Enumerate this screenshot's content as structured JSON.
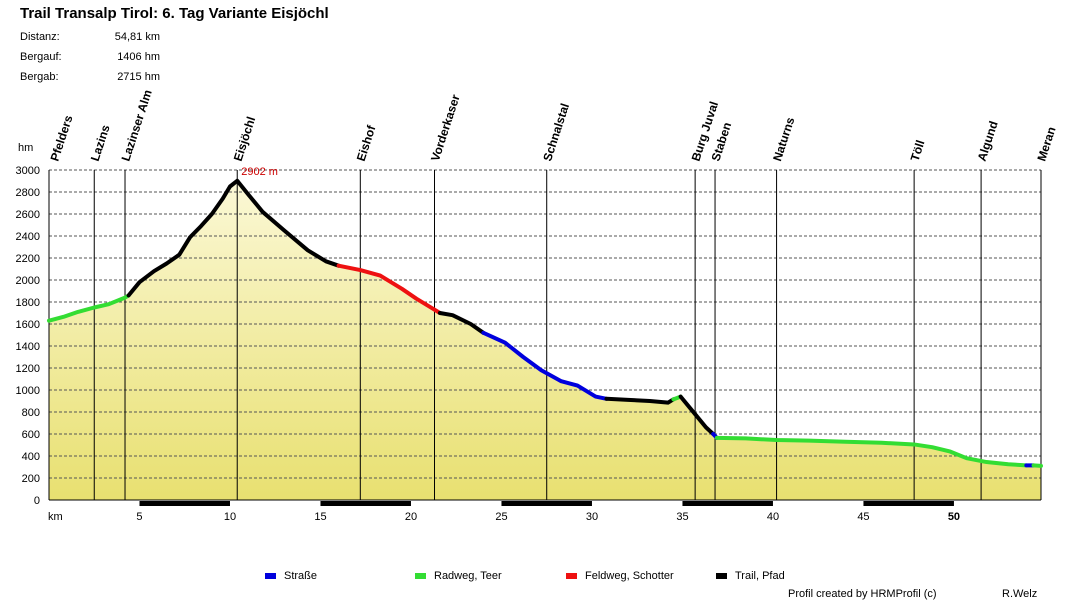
{
  "title": "Trail Transalp Tirol: 6. Tag Variante Eisjöchl",
  "stats": [
    {
      "label": "Distanz:",
      "value": "54,81 km"
    },
    {
      "label": "Bergauf:",
      "value": "1406 hm"
    },
    {
      "label": "Bergab:",
      "value": "2715 hm"
    }
  ],
  "credit": "Profil created by HRMProfil (c)",
  "author": "R.Welz",
  "colors": {
    "strasse": "#0000dd",
    "radweg": "#33dd33",
    "feldweg": "#ee1111",
    "trail": "#000000",
    "peak_label": "#cc0000",
    "fill_top": "#fbf8d6",
    "fill_bottom": "#e8e070"
  },
  "chart_data": {
    "type": "area",
    "ylabel": "hm",
    "xlabel": "km",
    "xlim": [
      0,
      54.81
    ],
    "ylim": [
      0,
      3000
    ],
    "yticks": [
      0,
      200,
      400,
      600,
      800,
      1000,
      1200,
      1400,
      1600,
      1800,
      2000,
      2200,
      2400,
      2600,
      2800,
      3000
    ],
    "xticks": [
      5,
      10,
      15,
      20,
      25,
      30,
      35,
      40,
      45,
      50
    ],
    "bold_xticks": [
      50
    ],
    "grid": true,
    "peak_annotation": {
      "label": "2902 m",
      "x": 10.4,
      "y": 2902
    },
    "waypoints": [
      {
        "name": "Pfelders",
        "km": 0.0
      },
      {
        "name": "Lazins",
        "km": 2.5
      },
      {
        "name": "Lazinser Alm",
        "km": 4.2
      },
      {
        "name": "Eisjöchl",
        "km": 10.4
      },
      {
        "name": "Eishof",
        "km": 17.2
      },
      {
        "name": "Vorderkaser",
        "km": 21.3
      },
      {
        "name": "Schnalstal",
        "km": 27.5
      },
      {
        "name": "Burg Juval",
        "km": 35.7
      },
      {
        "name": "Staben",
        "km": 36.8
      },
      {
        "name": "Naturns",
        "km": 40.2
      },
      {
        "name": "Töll",
        "km": 47.8
      },
      {
        "name": "Algund",
        "km": 51.5
      },
      {
        "name": "Meran",
        "km": 54.8
      }
    ],
    "legend": [
      {
        "key": "strasse",
        "label": "Straße"
      },
      {
        "key": "radweg",
        "label": "Radweg, Teer"
      },
      {
        "key": "feldweg",
        "label": "Feldweg, Schotter"
      },
      {
        "key": "trail",
        "label": "Trail, Pfad"
      }
    ],
    "segments": [
      {
        "surface": "radweg",
        "points": [
          [
            0,
            1630
          ],
          [
            0.8,
            1665
          ],
          [
            1.6,
            1710
          ],
          [
            2.5,
            1750
          ],
          [
            3.3,
            1780
          ],
          [
            4.2,
            1840
          ],
          [
            4.4,
            1860
          ]
        ]
      },
      {
        "surface": "trail",
        "points": [
          [
            4.4,
            1860
          ],
          [
            5.0,
            1980
          ],
          [
            5.8,
            2080
          ],
          [
            6.5,
            2150
          ],
          [
            7.2,
            2230
          ],
          [
            7.8,
            2390
          ],
          [
            8.4,
            2490
          ],
          [
            9.0,
            2600
          ],
          [
            9.6,
            2740
          ],
          [
            10.0,
            2850
          ],
          [
            10.4,
            2902
          ],
          [
            11.0,
            2780
          ],
          [
            11.8,
            2620
          ],
          [
            13.0,
            2450
          ],
          [
            14.3,
            2270
          ],
          [
            15.3,
            2170
          ],
          [
            16.0,
            2130
          ]
        ]
      },
      {
        "surface": "feldweg",
        "points": [
          [
            16.0,
            2130
          ],
          [
            17.2,
            2090
          ],
          [
            18.3,
            2040
          ],
          [
            19.5,
            1920
          ],
          [
            20.3,
            1830
          ],
          [
            21.2,
            1740
          ],
          [
            21.6,
            1700
          ]
        ]
      },
      {
        "surface": "trail",
        "points": [
          [
            21.6,
            1700
          ],
          [
            22.3,
            1680
          ],
          [
            23.3,
            1600
          ],
          [
            24.0,
            1520
          ]
        ]
      },
      {
        "surface": "strasse",
        "points": [
          [
            24.0,
            1520
          ],
          [
            25.2,
            1430
          ],
          [
            26.2,
            1300
          ],
          [
            27.2,
            1180
          ],
          [
            28.3,
            1080
          ],
          [
            29.2,
            1040
          ],
          [
            30.2,
            940
          ],
          [
            30.8,
            920
          ]
        ]
      },
      {
        "surface": "trail",
        "points": [
          [
            30.8,
            920
          ],
          [
            32.0,
            910
          ],
          [
            33.2,
            900
          ],
          [
            34.2,
            885
          ],
          [
            34.5,
            915
          ]
        ]
      },
      {
        "surface": "radweg",
        "points": [
          [
            34.5,
            915
          ],
          [
            34.9,
            940
          ]
        ]
      },
      {
        "surface": "trail",
        "points": [
          [
            34.9,
            940
          ],
          [
            35.7,
            780
          ],
          [
            36.3,
            660
          ],
          [
            36.7,
            600
          ]
        ]
      },
      {
        "surface": "strasse",
        "points": [
          [
            36.7,
            600
          ],
          [
            36.9,
            565
          ]
        ]
      },
      {
        "surface": "radweg",
        "points": [
          [
            36.9,
            565
          ],
          [
            38.5,
            560
          ],
          [
            40.2,
            545
          ],
          [
            42.0,
            540
          ],
          [
            44.0,
            530
          ],
          [
            46.0,
            520
          ],
          [
            47.8,
            505
          ],
          [
            48.8,
            480
          ],
          [
            49.8,
            440
          ],
          [
            50.7,
            380
          ],
          [
            51.8,
            345
          ],
          [
            53.0,
            325
          ],
          [
            54.0,
            315
          ]
        ]
      },
      {
        "surface": "strasse",
        "points": [
          [
            54.0,
            315
          ],
          [
            54.4,
            315
          ]
        ]
      },
      {
        "surface": "radweg",
        "points": [
          [
            54.4,
            315
          ],
          [
            54.81,
            310
          ]
        ]
      }
    ]
  }
}
